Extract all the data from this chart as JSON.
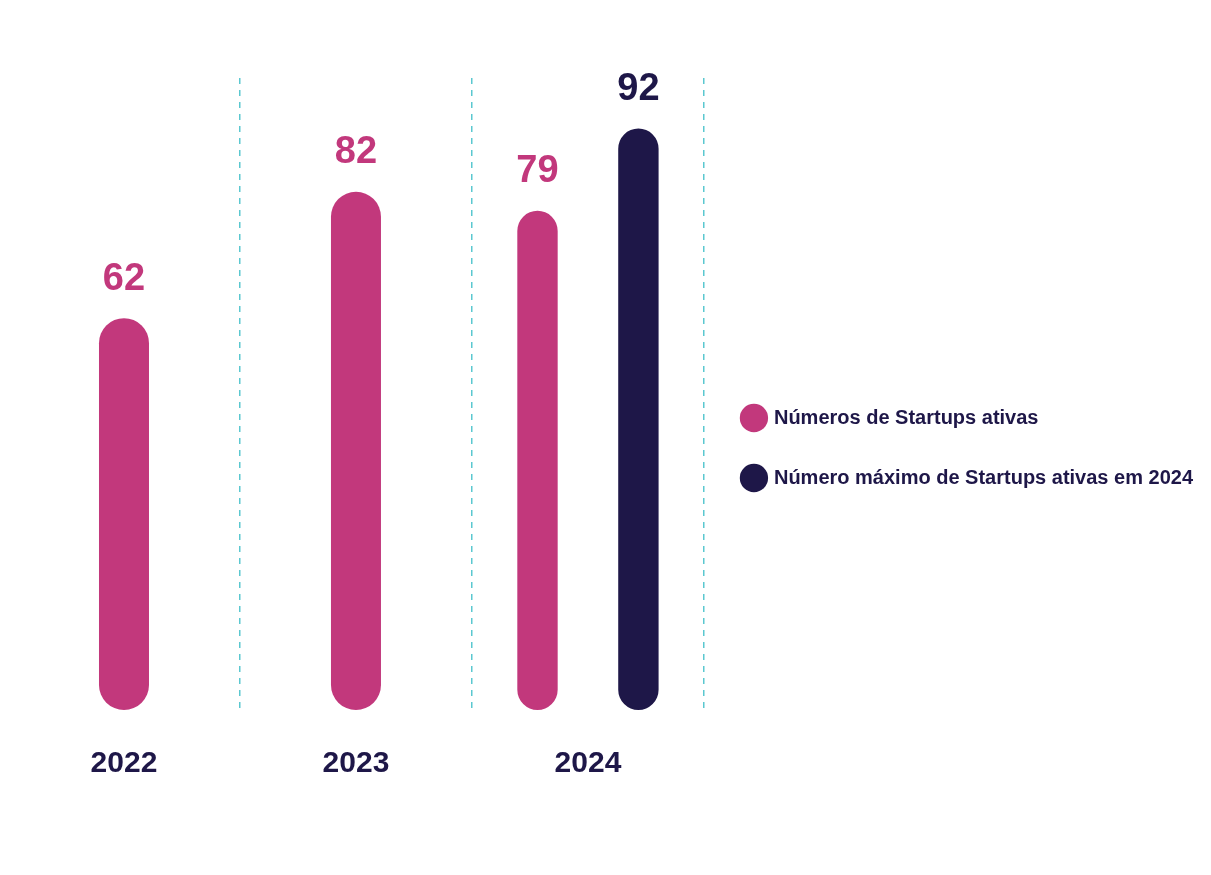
{
  "chart_data": {
    "type": "bar",
    "categories": [
      "2022",
      "2023",
      "2024"
    ],
    "series": [
      {
        "name": "Números de Startups ativas",
        "color": "#c2387c",
        "values": [
          62,
          82,
          79
        ]
      },
      {
        "name": "Número máximo de Startups ativas em 2024",
        "color": "#1e1748",
        "values": [
          null,
          null,
          92
        ]
      }
    ],
    "data_labels": true,
    "grid": "x",
    "legend": "right",
    "tick_labels": "x"
  }
}
